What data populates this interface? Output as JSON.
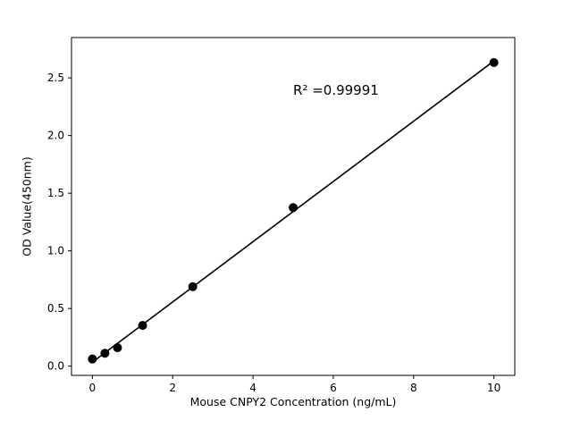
{
  "chart_data": {
    "type": "scatter",
    "title": "",
    "xlabel": "Mouse CNPY2 Concentration (ng/mL)",
    "ylabel": "OD Value(450nm)",
    "annotation": "R² =0.99991",
    "x": [
      0,
      0.3125,
      0.625,
      1.25,
      2.5,
      5,
      10
    ],
    "y": [
      0.062,
      0.112,
      0.16,
      0.353,
      0.689,
      1.375,
      2.633
    ],
    "xlim": [
      -0.52,
      10.52
    ],
    "ylim": [
      -0.08,
      2.85
    ],
    "xticks": [
      0,
      2,
      4,
      6,
      8,
      10
    ],
    "xtick_labels": [
      "0",
      "2",
      "4",
      "6",
      "8",
      "10"
    ],
    "yticks": [
      0.0,
      0.5,
      1.0,
      1.5,
      2.0,
      2.5
    ],
    "ytick_labels": [
      "0.0",
      "0.5",
      "1.0",
      "1.5",
      "2.0",
      "2.5"
    ],
    "marker_color": "#000000",
    "line_color": "#000000",
    "frame_color": "#000000",
    "legend": "none",
    "grid": false
  }
}
